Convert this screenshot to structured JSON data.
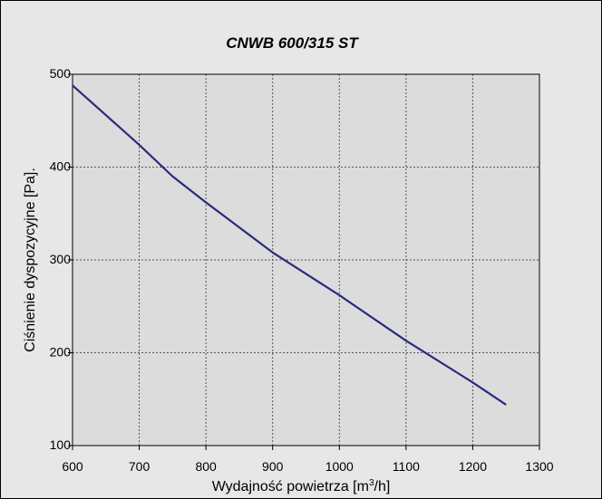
{
  "chart_data": {
    "type": "line",
    "title": "CNWB 600/315 ST",
    "xlabel": "Wydajność powietrza [m",
    "xlabel_sup": "3",
    "xlabel_tail": "/h]",
    "ylabel": "Ciśnienie dyspozycyjne [Pa].",
    "xlim": [
      600,
      1300
    ],
    "ylim": [
      100,
      500
    ],
    "xticks": [
      600,
      700,
      800,
      900,
      1000,
      1100,
      1200,
      1300
    ],
    "yticks": [
      100,
      200,
      300,
      400,
      500
    ],
    "grid": true,
    "series": [
      {
        "color": "#2a2a80",
        "x": [
          600,
          700,
          750,
          800,
          900,
          1000,
          1100,
          1200,
          1250
        ],
        "y": [
          488,
          424,
          390,
          362,
          308,
          262,
          213,
          168,
          144
        ]
      }
    ]
  }
}
